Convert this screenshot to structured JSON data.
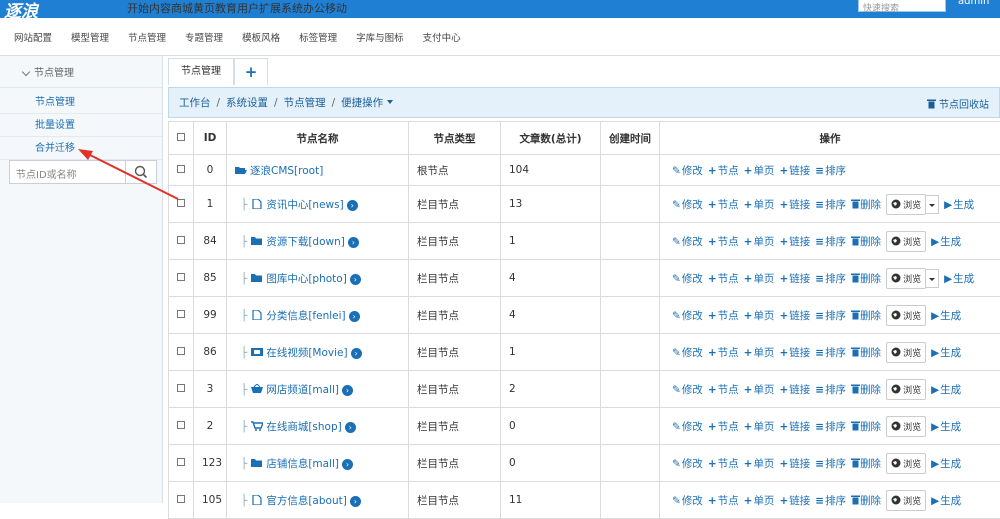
{
  "top_nav": {
    "logo": "逐浪",
    "items": [
      {
        "label": "开始"
      },
      {
        "label": "内容"
      },
      {
        "label": "商城"
      },
      {
        "label": "黄页"
      },
      {
        "label": "教育"
      },
      {
        "label": "用户"
      },
      {
        "label": "扩展"
      },
      {
        "label": "系统",
        "active": true
      },
      {
        "label": "办公"
      },
      {
        "label": "移动"
      }
    ],
    "search_placeholder": "快速搜索",
    "user": "admin"
  },
  "sub_nav": {
    "items": [
      "网站配置",
      "模型管理",
      "节点管理",
      "专题管理",
      "模板风格",
      "标签管理",
      "字库与图标",
      "支付中心"
    ]
  },
  "sidebar": {
    "title": "节点管理",
    "links": [
      "节点管理",
      "批量设置",
      "合并迁移"
    ],
    "search_placeholder": "节点ID或名称"
  },
  "tabs": {
    "items": [
      "节点管理"
    ],
    "add": "+"
  },
  "breadcrumb": {
    "items": [
      "工作台",
      "系统设置",
      "节点管理"
    ],
    "menu": "便捷操作",
    "recycle": "节点回收站"
  },
  "table": {
    "columns": [
      "ID",
      "节点名称",
      "节点类型",
      "文章数(总计)",
      "创建时间",
      "操作"
    ],
    "rows": [
      {
        "id": 0,
        "name": "逐浪CMS[root]",
        "type": "根节点",
        "count": 104,
        "icon": "folder-open",
        "actions": [
          "修改",
          "节点",
          "单页",
          "链接",
          "排序"
        ]
      },
      {
        "id": 1,
        "name": "资讯中心[news]",
        "type": "栏目节点",
        "count": 13,
        "icon": "file",
        "actions": [
          "修改",
          "节点",
          "单页",
          "链接",
          "排序",
          "删除",
          "浏览",
          "生成"
        ],
        "browse_dropdown": true
      },
      {
        "id": 84,
        "name": "资源下载[down]",
        "type": "栏目节点",
        "count": 1,
        "icon": "folder",
        "actions": [
          "修改",
          "节点",
          "单页",
          "链接",
          "排序",
          "删除",
          "浏览",
          "生成"
        ]
      },
      {
        "id": 85,
        "name": "图库中心[photo]",
        "type": "栏目节点",
        "count": 4,
        "icon": "folder",
        "actions": [
          "修改",
          "节点",
          "单页",
          "链接",
          "排序",
          "删除",
          "浏览",
          "生成"
        ],
        "browse_dropdown": true
      },
      {
        "id": 99,
        "name": "分类信息[fenlei]",
        "type": "栏目节点",
        "count": 4,
        "icon": "file",
        "actions": [
          "修改",
          "节点",
          "单页",
          "链接",
          "排序",
          "删除",
          "浏览",
          "生成"
        ]
      },
      {
        "id": 86,
        "name": "在线视频[Movie]",
        "type": "栏目节点",
        "count": 1,
        "icon": "film",
        "actions": [
          "修改",
          "节点",
          "单页",
          "链接",
          "排序",
          "删除",
          "浏览",
          "生成"
        ]
      },
      {
        "id": 3,
        "name": "网店频道[mall]",
        "type": "栏目节点",
        "count": 2,
        "icon": "basket",
        "actions": [
          "修改",
          "节点",
          "单页",
          "链接",
          "排序",
          "删除",
          "浏览",
          "生成"
        ]
      },
      {
        "id": 2,
        "name": "在线商城[shop]",
        "type": "栏目节点",
        "count": 0,
        "icon": "cart",
        "actions": [
          "修改",
          "节点",
          "单页",
          "链接",
          "排序",
          "删除",
          "浏览",
          "生成"
        ]
      },
      {
        "id": 123,
        "name": "店铺信息[mall]",
        "type": "栏目节点",
        "count": 0,
        "icon": "folder",
        "actions": [
          "修改",
          "节点",
          "单页",
          "链接",
          "排序",
          "删除",
          "浏览",
          "生成"
        ]
      },
      {
        "id": 105,
        "name": "官方信息[about]",
        "type": "栏目节点",
        "count": 11,
        "icon": "file",
        "actions": [
          "修改",
          "节点",
          "单页",
          "链接",
          "排序",
          "删除",
          "浏览",
          "生成"
        ]
      }
    ]
  }
}
